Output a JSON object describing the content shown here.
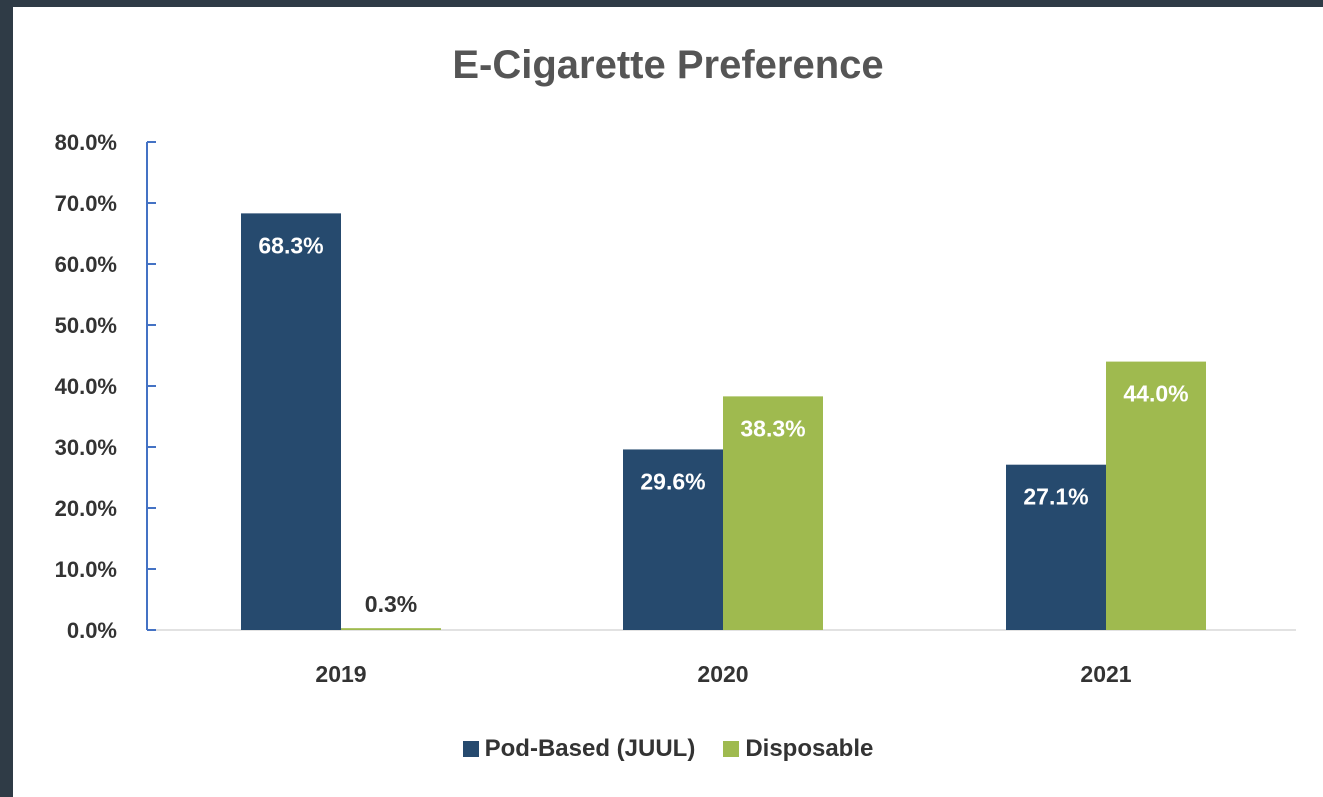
{
  "chart_data": {
    "type": "bar",
    "title": "E-Cigarette Preference",
    "xlabel": "",
    "ylabel": "",
    "categories": [
      "2019",
      "2020",
      "2021"
    ],
    "series": [
      {
        "name": "Pod-Based (JUUL)",
        "values": [
          68.3,
          29.6,
          27.1
        ],
        "labels": [
          "68.3%",
          "29.6%",
          "27.1%"
        ],
        "color": "#264a6e",
        "label_color": "#ffffff"
      },
      {
        "name": "Disposable",
        "values": [
          0.3,
          38.3,
          44.0
        ],
        "labels": [
          "0.3%",
          "38.3%",
          "44.0%"
        ],
        "color": "#9fba4f",
        "label_color": "#ffffff"
      }
    ],
    "ylim": [
      0,
      80
    ],
    "yticks": [
      0,
      10,
      20,
      30,
      40,
      50,
      60,
      70,
      80
    ],
    "ytick_labels": [
      "0.0%",
      "10.0%",
      "20.0%",
      "30.0%",
      "40.0%",
      "50.0%",
      "60.0%",
      "70.0%",
      "80.0%"
    ],
    "grid": false,
    "legend_position": "bottom",
    "colors": {
      "axis": "#4472c4",
      "baseline": "#d9d9d9",
      "tick_text": "#333333",
      "outside_label_text": "#333333"
    }
  }
}
